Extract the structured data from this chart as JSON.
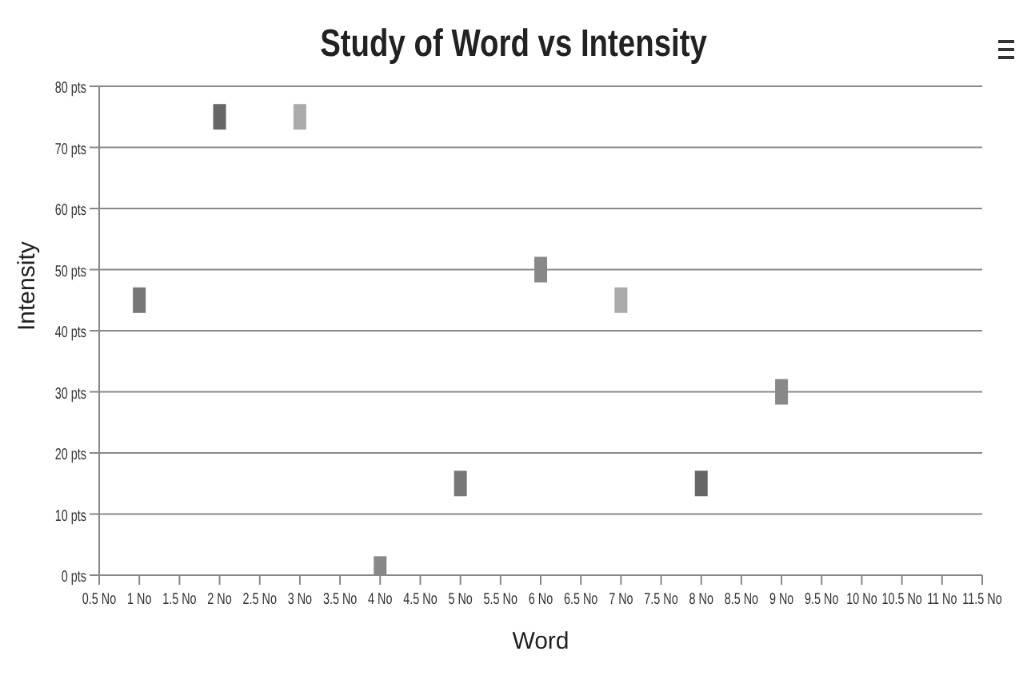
{
  "chart_data": {
    "type": "scatter",
    "title": "Study of Word vs Intensity",
    "xlabel": "Word",
    "ylabel": "Intensity",
    "x": [
      1,
      2,
      3,
      4,
      5,
      6,
      7,
      8,
      9
    ],
    "values": [
      45,
      75,
      75,
      1,
      15,
      50,
      45,
      15,
      30
    ],
    "colors": [
      "#777777",
      "#666666",
      "#aaaaaa",
      "#888888",
      "#777777",
      "#888888",
      "#aaaaaa",
      "#666666",
      "#888888"
    ],
    "xlim": [
      0.5,
      11.5
    ],
    "xticks": [
      {
        "value": 0.5,
        "label": "0.5 No"
      },
      {
        "value": 1,
        "label": "1 No"
      },
      {
        "value": 1.5,
        "label": "1.5 No"
      },
      {
        "value": 2,
        "label": "2 No"
      },
      {
        "value": 2.5,
        "label": "2.5 No"
      },
      {
        "value": 3,
        "label": "3 No"
      },
      {
        "value": 3.5,
        "label": "3.5 No"
      },
      {
        "value": 4,
        "label": "4 No"
      },
      {
        "value": 4.5,
        "label": "4.5 No"
      },
      {
        "value": 5,
        "label": "5 No"
      },
      {
        "value": 5.5,
        "label": "5.5 No"
      },
      {
        "value": 6,
        "label": "6 No"
      },
      {
        "value": 6.5,
        "label": "6.5 No"
      },
      {
        "value": 7,
        "label": "7 No"
      },
      {
        "value": 7.5,
        "label": "7.5 No"
      },
      {
        "value": 8,
        "label": "8 No"
      },
      {
        "value": 8.5,
        "label": "8.5 No"
      },
      {
        "value": 9,
        "label": "9 No"
      },
      {
        "value": 9.5,
        "label": "9.5 No"
      },
      {
        "value": 10,
        "label": "10 No"
      },
      {
        "value": 10.5,
        "label": "10.5 No"
      },
      {
        "value": 11,
        "label": "11 No"
      },
      {
        "value": 11.5,
        "label": "11.5 No"
      }
    ],
    "ylim": [
      0,
      80
    ],
    "yticks": [
      {
        "value": 0,
        "label": "0 pts"
      },
      {
        "value": 10,
        "label": "10 pts"
      },
      {
        "value": 20,
        "label": "20 pts"
      },
      {
        "value": 30,
        "label": "30 pts"
      },
      {
        "value": 40,
        "label": "40 pts"
      },
      {
        "value": 50,
        "label": "50 pts"
      },
      {
        "value": 60,
        "label": "60 pts"
      },
      {
        "value": 70,
        "label": "70 pts"
      },
      {
        "value": 80,
        "label": "80 pts"
      }
    ],
    "grid": "y",
    "marker": "square"
  }
}
